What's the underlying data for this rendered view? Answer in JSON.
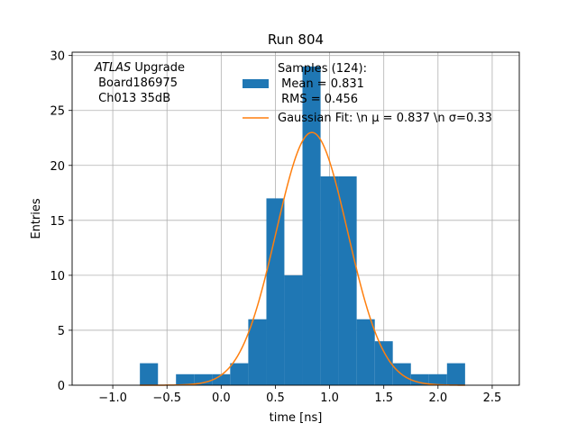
{
  "chart_data": {
    "type": "bar",
    "title": "Run 804",
    "xlabel": "time [ns]",
    "ylabel": "Entries",
    "xlim": [
      -1.375,
      2.75
    ],
    "ylim": [
      0,
      30.3
    ],
    "xticks": [
      -1.0,
      -0.5,
      0.0,
      0.5,
      1.0,
      1.5,
      2.0,
      2.5
    ],
    "xtick_labels": [
      "−1.0",
      "−0.5",
      "0.0",
      "0.5",
      "1.0",
      "1.5",
      "2.0",
      "2.5"
    ],
    "yticks": [
      0,
      5,
      10,
      15,
      20,
      25,
      30
    ],
    "ytick_labels": [
      "0",
      "5",
      "10",
      "15",
      "20",
      "25",
      "30"
    ],
    "grid": true,
    "bin_edges": [
      -0.75,
      -0.583,
      -0.417,
      -0.25,
      -0.083,
      0.083,
      0.25,
      0.417,
      0.583,
      0.75,
      0.917,
      1.083,
      1.25,
      1.417,
      1.583,
      1.75,
      1.917,
      2.083,
      2.25
    ],
    "counts": [
      2,
      0,
      1,
      1,
      1,
      2,
      6,
      17,
      10,
      29,
      19,
      19,
      6,
      4,
      2,
      1,
      1,
      2
    ],
    "bar_color": "#1f77b4",
    "fit": {
      "type": "gaussian",
      "amplitude": 23,
      "mu": 0.837,
      "sigma": 0.33,
      "color": "#ff7f0e"
    },
    "legend": {
      "placement": "upper-center",
      "entries": [
        {
          "kind": "patch",
          "lines": [
            "Samples (124):",
            " Mean = 0.831",
            " RMS = 0.456"
          ]
        },
        {
          "kind": "line",
          "lines": [
            "Gaussian Fit: \\n μ = 0.837 \\n σ=0.33"
          ]
        }
      ]
    },
    "annotation": {
      "placement": "upper-left",
      "line1_italic": "ATLAS",
      "line1_rest": " Upgrade",
      "line2": " Board186975",
      "line3": " Ch013 35dB"
    }
  }
}
